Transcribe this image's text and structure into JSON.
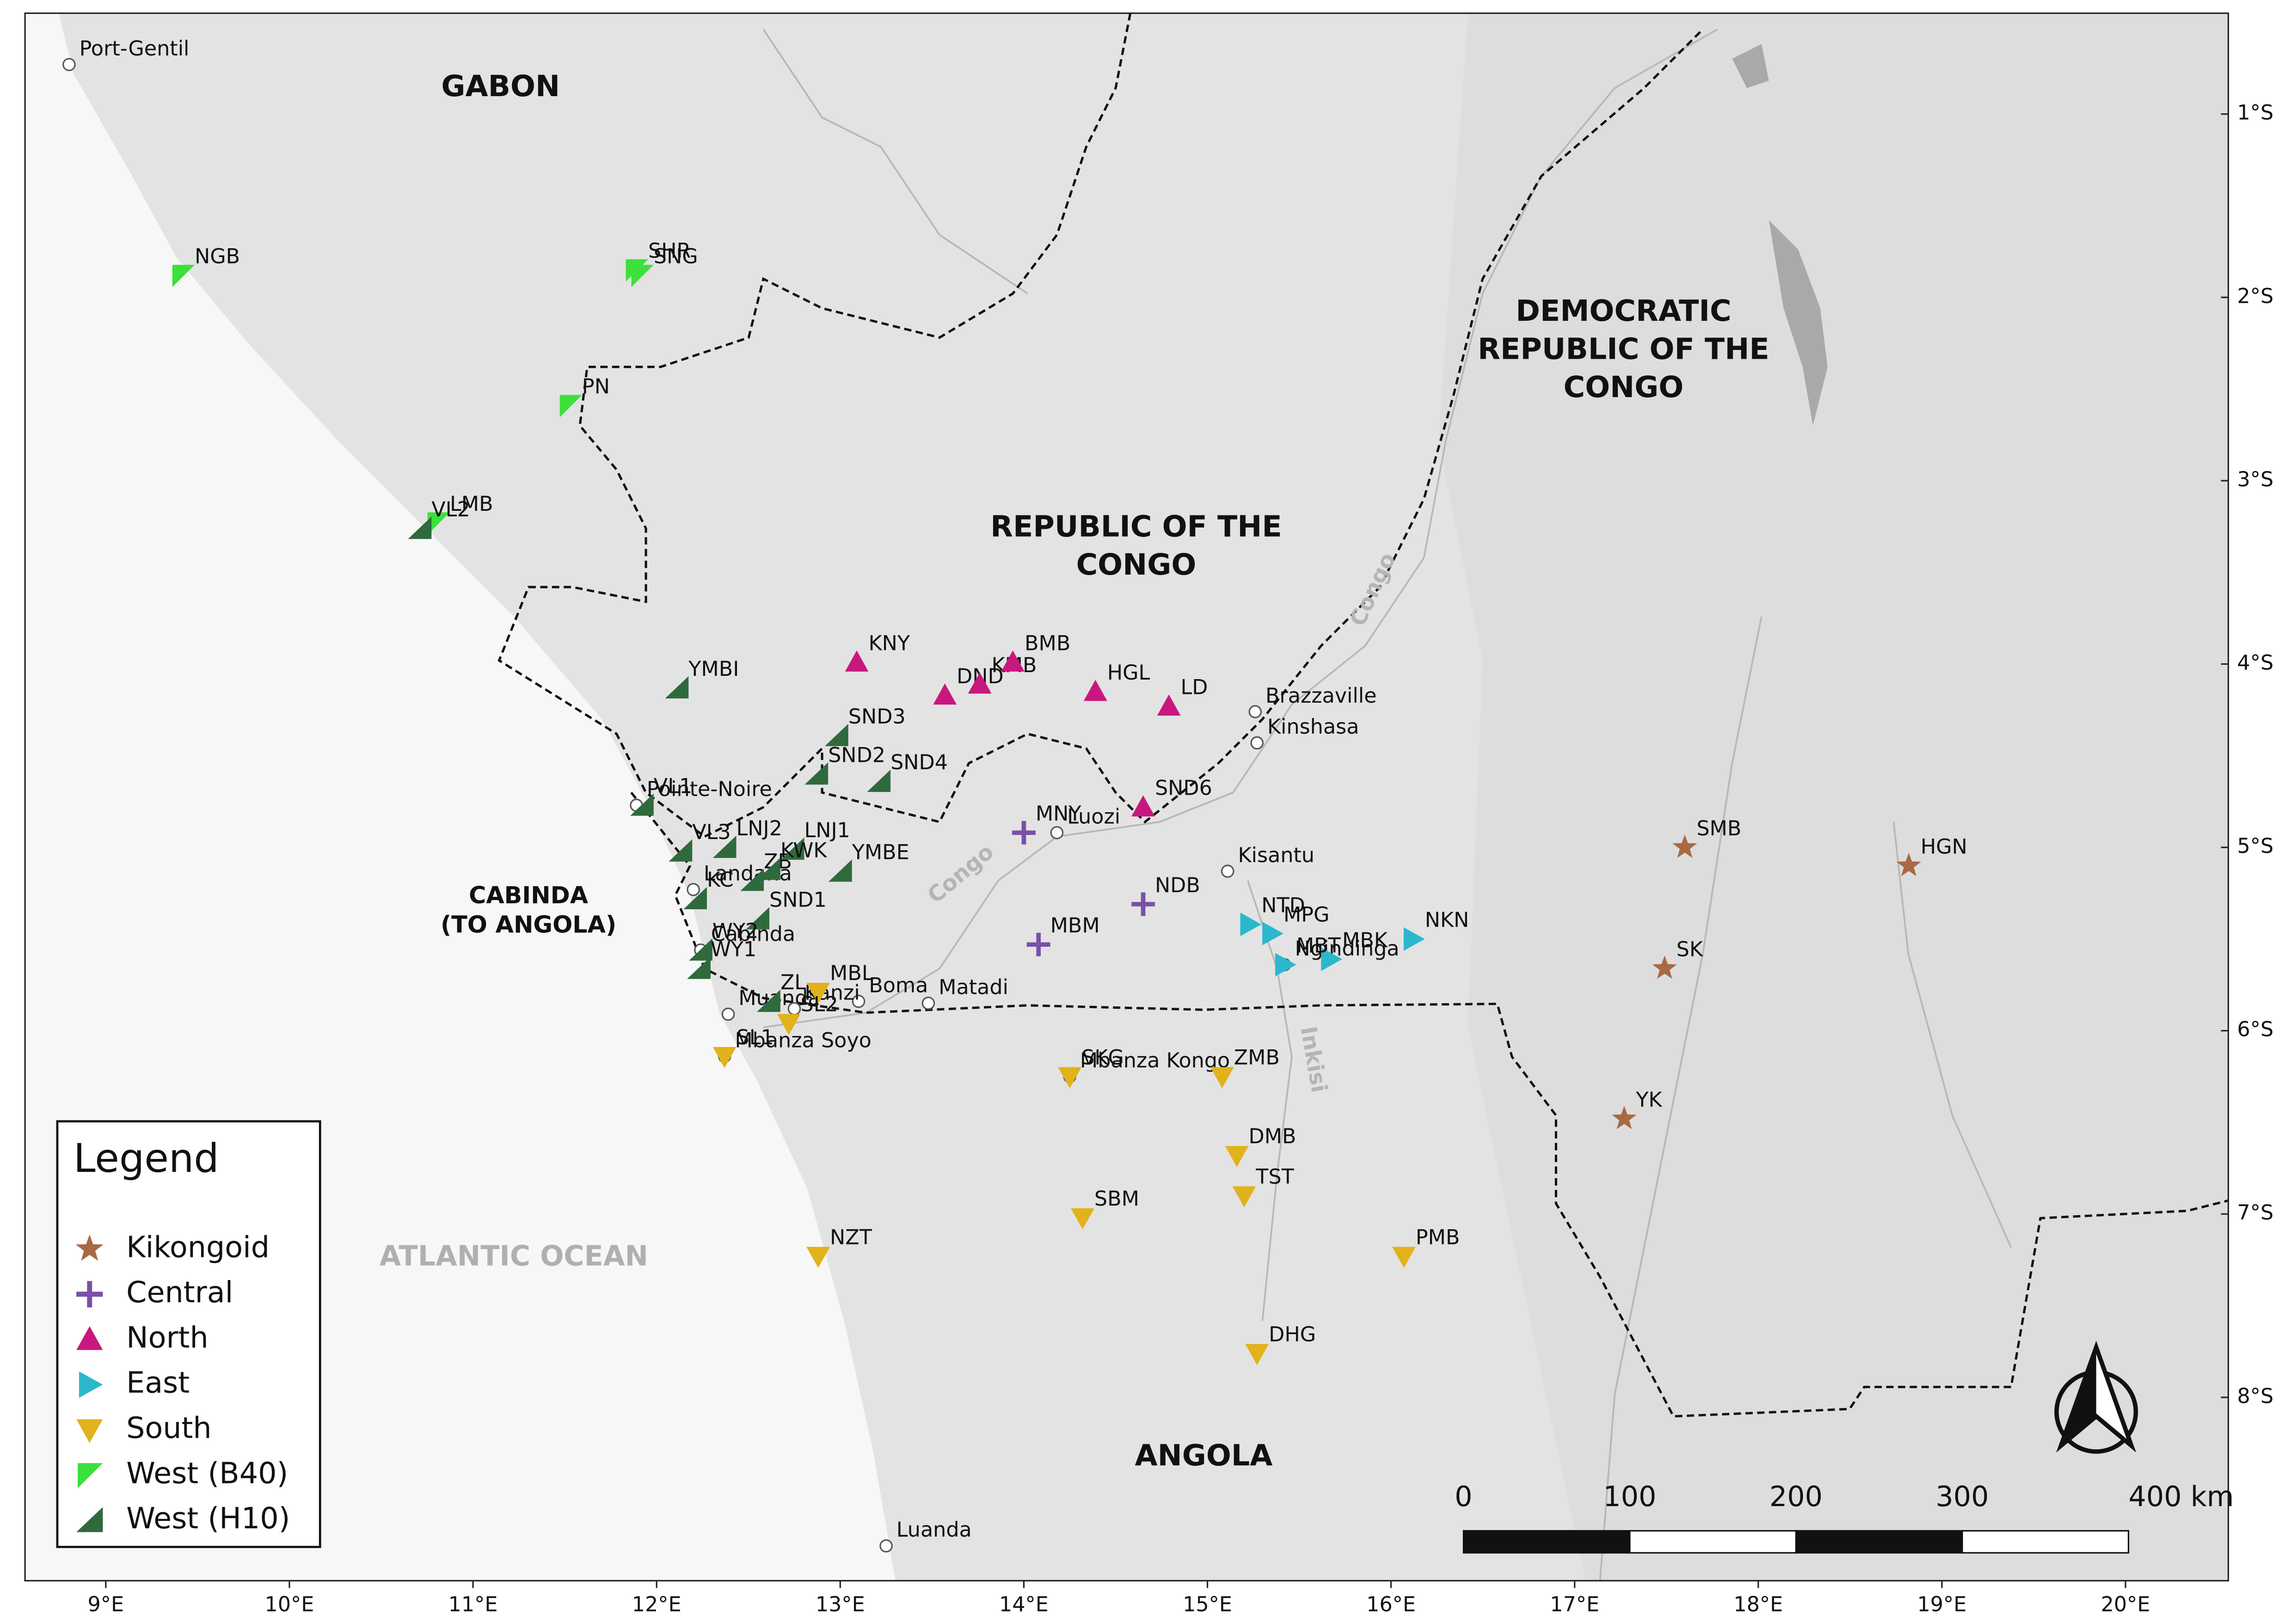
{
  "map": {
    "xlim": [
      8.56,
      20.56
    ],
    "ylim": [
      -9.0,
      -0.45
    ],
    "xticks": [
      {
        "value": 9,
        "label": "9°E"
      },
      {
        "value": 10,
        "label": "10°E"
      },
      {
        "value": 11,
        "label": "11°E"
      },
      {
        "value": 12,
        "label": "12°E"
      },
      {
        "value": 13,
        "label": "13°E"
      },
      {
        "value": 14,
        "label": "14°E"
      },
      {
        "value": 15,
        "label": "15°E"
      },
      {
        "value": 16,
        "label": "16°E"
      },
      {
        "value": 17,
        "label": "17°E"
      },
      {
        "value": 18,
        "label": "18°E"
      },
      {
        "value": 19,
        "label": "19°E"
      },
      {
        "value": 20,
        "label": "20°E"
      }
    ],
    "yticks": [
      {
        "value": -1,
        "label": "1°S"
      },
      {
        "value": -2,
        "label": "2°S"
      },
      {
        "value": -3,
        "label": "3°S"
      },
      {
        "value": -4,
        "label": "4°S"
      },
      {
        "value": -5,
        "label": "5°S"
      },
      {
        "value": -6,
        "label": "6°S"
      },
      {
        "value": -7,
        "label": "7°S"
      },
      {
        "value": -8,
        "label": "8°S"
      }
    ],
    "countries": [
      {
        "lines": [
          "GABON"
        ]
      },
      {
        "lines": [
          "REPUBLIC OF THE",
          "CONGO"
        ]
      },
      {
        "lines": [
          "DEMOCRATIC",
          "REPUBLIC OF THE",
          "CONGO"
        ]
      },
      {
        "lines": [
          "CABINDA",
          "(TO ANGOLA)"
        ]
      },
      {
        "lines": [
          "ANGOLA"
        ]
      }
    ],
    "water": [
      "ATLANTIC OCEAN"
    ],
    "rivers": [
      "Congo",
      "Congo",
      "Inkisi"
    ],
    "places": [
      {
        "name": "Port-Gentil",
        "lon": 8.8,
        "lat": -0.73
      },
      {
        "name": "Pointe-Noire",
        "lon": 11.89,
        "lat": -4.77
      },
      {
        "name": "Landana",
        "lon": 12.2,
        "lat": -5.23
      },
      {
        "name": "Cabinda",
        "lon": 12.24,
        "lat": -5.56
      },
      {
        "name": "Muanda",
        "lon": 12.39,
        "lat": -5.91
      },
      {
        "name": "Mbanza Soyo",
        "lon": 12.37,
        "lat": -6.14
      },
      {
        "name": "Boma",
        "lon": 13.1,
        "lat": -5.84
      },
      {
        "name": "Matadi",
        "lon": 13.48,
        "lat": -5.85
      },
      {
        "name": "Luozi",
        "lon": 14.18,
        "lat": -4.92
      },
      {
        "name": "Kisantu",
        "lon": 15.11,
        "lat": -5.13
      },
      {
        "name": "Brazzaville",
        "lon": 15.26,
        "lat": -4.26
      },
      {
        "name": "Kinshasa",
        "lon": 15.27,
        "lat": -4.43
      },
      {
        "name": "Ngindinga",
        "lon": 15.42,
        "lat": -5.64
      },
      {
        "name": "Mbanza Kongo",
        "lon": 14.25,
        "lat": -6.25
      },
      {
        "name": "Kanzi",
        "lon": 12.75,
        "lat": -5.88
      },
      {
        "name": "Luanda",
        "lon": 13.25,
        "lat": -8.81
      }
    ],
    "legend": {
      "title": "Legend"
    },
    "groups": [
      {
        "name": "Kikongoid",
        "color": "#a86a42",
        "marker": "star",
        "sites": [
          {
            "label": "SMB",
            "lon": 17.6,
            "lat": -5.0
          },
          {
            "label": "HGN",
            "lon": 18.82,
            "lat": -5.1
          },
          {
            "label": "SK",
            "lon": 17.49,
            "lat": -5.66
          },
          {
            "label": "YK",
            "lon": 17.27,
            "lat": -6.48
          }
        ]
      },
      {
        "name": "Central",
        "color": "#7b4fa8",
        "marker": "plus",
        "sites": [
          {
            "label": "MNY",
            "lon": 14.0,
            "lat": -4.92
          },
          {
            "label": "NDB",
            "lon": 14.65,
            "lat": -5.31
          },
          {
            "label": "MBM",
            "lon": 14.08,
            "lat": -5.53
          }
        ]
      },
      {
        "name": "North",
        "color": "#c8177e",
        "marker": "up",
        "sites": [
          {
            "label": "KNY",
            "lon": 13.09,
            "lat": -3.99
          },
          {
            "label": "DND",
            "lon": 13.57,
            "lat": -4.17
          },
          {
            "label": "KMB",
            "lon": 13.76,
            "lat": -4.11
          },
          {
            "label": "BMB",
            "lon": 13.94,
            "lat": -3.99
          },
          {
            "label": "HGL",
            "lon": 14.39,
            "lat": -4.15
          },
          {
            "label": "LD",
            "lon": 14.79,
            "lat": -4.23
          },
          {
            "label": "SND6",
            "lon": 14.65,
            "lat": -4.78
          }
        ]
      },
      {
        "name": "East",
        "color": "#2bb8cc",
        "marker": "right",
        "sites": [
          {
            "label": "NTD",
            "lon": 15.23,
            "lat": -5.42
          },
          {
            "label": "MPG",
            "lon": 15.35,
            "lat": -5.47
          },
          {
            "label": "MBK",
            "lon": 15.67,
            "lat": -5.61
          },
          {
            "label": "NKN",
            "lon": 16.12,
            "lat": -5.5
          },
          {
            "label": "MBT",
            "lon": 15.42,
            "lat": -5.64
          }
        ]
      },
      {
        "name": "South",
        "color": "#e2b21c",
        "marker": "down",
        "sites": [
          {
            "label": "MBL",
            "lon": 12.88,
            "lat": -5.79
          },
          {
            "label": "SL2",
            "lon": 12.72,
            "lat": -5.96
          },
          {
            "label": "SL1",
            "lon": 12.37,
            "lat": -6.14
          },
          {
            "label": "SKG",
            "lon": 14.25,
            "lat": -6.25
          },
          {
            "label": "ZMB",
            "lon": 15.08,
            "lat": -6.25
          },
          {
            "label": "DMB",
            "lon": 15.16,
            "lat": -6.68
          },
          {
            "label": "TST",
            "lon": 15.2,
            "lat": -6.9
          },
          {
            "label": "SBM",
            "lon": 14.32,
            "lat": -7.02
          },
          {
            "label": "NZT",
            "lon": 12.88,
            "lat": -7.23
          },
          {
            "label": "PMB",
            "lon": 16.07,
            "lat": -7.23
          },
          {
            "label": "DHG",
            "lon": 15.27,
            "lat": -7.76
          }
        ]
      },
      {
        "name": "West (B40)",
        "color": "#3de03a",
        "marker": "flag",
        "sites": [
          {
            "label": "NGB",
            "lon": 9.42,
            "lat": -1.88
          },
          {
            "label": "SHR",
            "lon": 11.89,
            "lat": -1.85
          },
          {
            "label": "SNG",
            "lon": 11.92,
            "lat": -1.88
          },
          {
            "label": "PN",
            "lon": 11.53,
            "lat": -2.59
          },
          {
            "label": "LMB",
            "lon": 10.81,
            "lat": -3.23
          }
        ]
      },
      {
        "name": "West (H10)",
        "color": "#2f6a3c",
        "marker": "wedge",
        "sites": [
          {
            "label": "VL2",
            "lon": 10.71,
            "lat": -3.26
          },
          {
            "label": "YMBI",
            "lon": 12.11,
            "lat": -4.13
          },
          {
            "label": "SND3",
            "lon": 12.98,
            "lat": -4.39
          },
          {
            "label": "SND2",
            "lon": 12.87,
            "lat": -4.6
          },
          {
            "label": "SND4",
            "lon": 13.21,
            "lat": -4.64
          },
          {
            "label": "VL1",
            "lon": 11.92,
            "lat": -4.77
          },
          {
            "label": "VL3",
            "lon": 12.13,
            "lat": -5.02
          },
          {
            "label": "LNJ2",
            "lon": 12.37,
            "lat": -5.0
          },
          {
            "label": "ZB",
            "lon": 12.52,
            "lat": -5.18
          },
          {
            "label": "LNJ1",
            "lon": 12.74,
            "lat": -5.01
          },
          {
            "label": "KWK",
            "lon": 12.61,
            "lat": -5.12
          },
          {
            "label": "YMBE",
            "lon": 13.0,
            "lat": -5.13
          },
          {
            "label": "KC",
            "lon": 12.21,
            "lat": -5.28
          },
          {
            "label": "SND1",
            "lon": 12.55,
            "lat": -5.39
          },
          {
            "label": "WY2",
            "lon": 12.24,
            "lat": -5.56
          },
          {
            "label": "WY1",
            "lon": 12.23,
            "lat": -5.66
          },
          {
            "label": "ZL",
            "lon": 12.61,
            "lat": -5.84
          }
        ]
      }
    ],
    "scale_bar": {
      "ticks": [
        0,
        100,
        200,
        300,
        {
          "value": 400,
          "label": "400 km"
        }
      ]
    }
  }
}
